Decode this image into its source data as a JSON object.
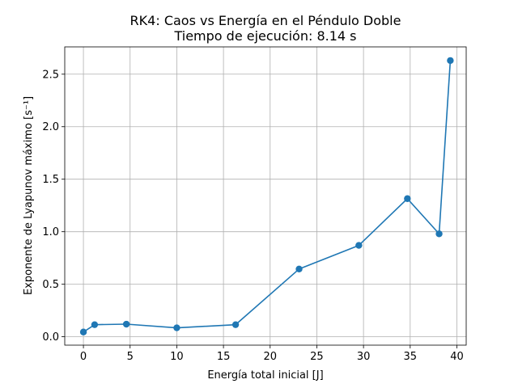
{
  "chart_data": {
    "type": "line",
    "title": "RK4: Caos vs Energía en el Péndulo Doble",
    "subtitle": "Tiempo de ejecución: 8.14 s",
    "xlabel": "Energía total inicial [J]",
    "ylabel": "Exponente de Lyapunov máximo [s⁻¹]",
    "xlim": [
      -2,
      41
    ],
    "ylim": [
      -0.08,
      2.76
    ],
    "xticks": [
      0,
      5,
      10,
      15,
      20,
      25,
      30,
      35,
      40
    ],
    "yticks": [
      0.0,
      0.5,
      1.0,
      1.5,
      2.0,
      2.5
    ],
    "xtick_labels": [
      "0",
      "5",
      "10",
      "15",
      "20",
      "25",
      "30",
      "35",
      "40"
    ],
    "ytick_labels": [
      "0.0",
      "0.5",
      "1.0",
      "1.5",
      "2.0",
      "2.5"
    ],
    "grid": true,
    "line_color": "#1f77b4",
    "series": [
      {
        "x": [
          0.0,
          1.2,
          4.6,
          10.0,
          16.3,
          23.1,
          29.5,
          34.7,
          38.1,
          39.3
        ],
        "y": [
          0.045,
          0.115,
          0.12,
          0.085,
          0.115,
          0.645,
          0.87,
          1.315,
          0.98,
          2.63
        ]
      }
    ]
  }
}
